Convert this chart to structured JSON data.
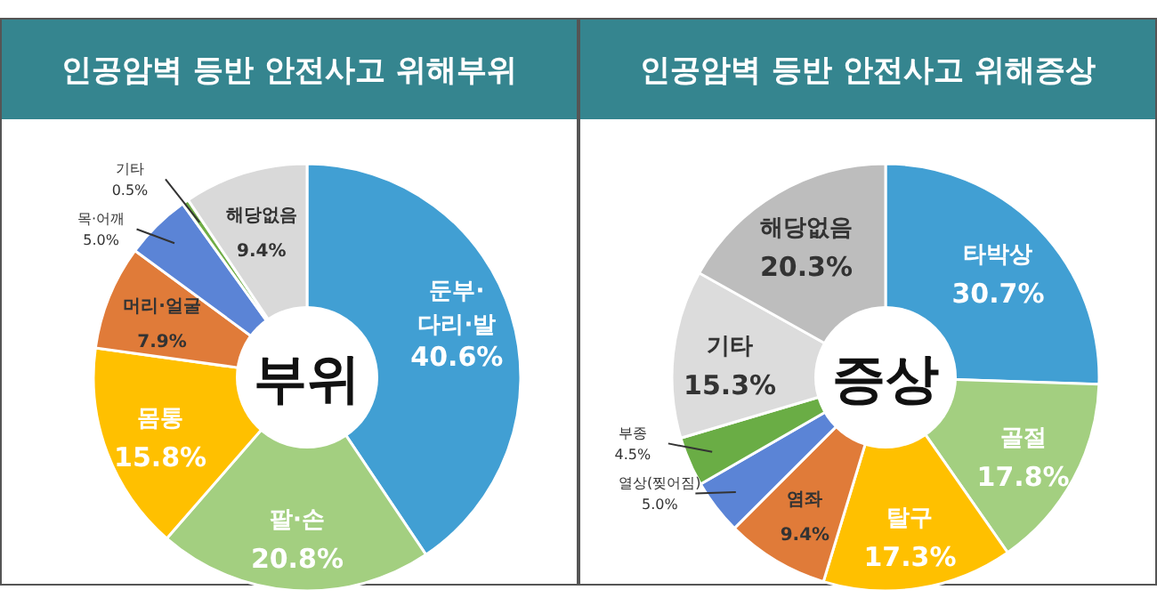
{
  "chart_data": [
    {
      "type": "donut",
      "title": "인공암벽 등반 안전사고 위해부위",
      "annotations": [
        "부위"
      ],
      "categories": [
        "둔부·다리·발",
        "팔·손",
        "몸통",
        "머리·얼굴",
        "목·어깨",
        "기타",
        "해당없음"
      ],
      "values": [
        40.6,
        20.8,
        15.8,
        7.9,
        5.0,
        0.5,
        9.4
      ],
      "value_labels": [
        "40.6%",
        "20.8%",
        "15.8%",
        "7.9%",
        "5.0%",
        "0.5%",
        "9.4%"
      ],
      "colors": [
        "#419fd3",
        "#a3cf80",
        "#ffc000",
        "#e07b39",
        "#5b84d6",
        "#70ad47",
        "#d9d9d9"
      ]
    },
    {
      "type": "donut",
      "title": "인공암벽 등반 안전사고 위해증상",
      "annotations": [
        "증상"
      ],
      "categories": [
        "타박상",
        "골절",
        "탈구",
        "염좌",
        "열상(찢어짐)",
        "부종",
        "기타",
        "해당없음"
      ],
      "values": [
        30.7,
        17.8,
        17.3,
        9.4,
        5.0,
        4.5,
        15.3,
        20.3
      ],
      "value_labels": [
        "30.7%",
        "17.8%",
        "17.3%",
        "9.4%",
        "5.0%",
        "4.5%",
        "15.3%",
        "20.3%"
      ],
      "colors": [
        "#419fd3",
        "#a3cf80",
        "#ffc000",
        "#e07b39",
        "#5b84d6",
        "#6aad45",
        "#dcdcdc",
        "#bdbdbd"
      ]
    }
  ]
}
